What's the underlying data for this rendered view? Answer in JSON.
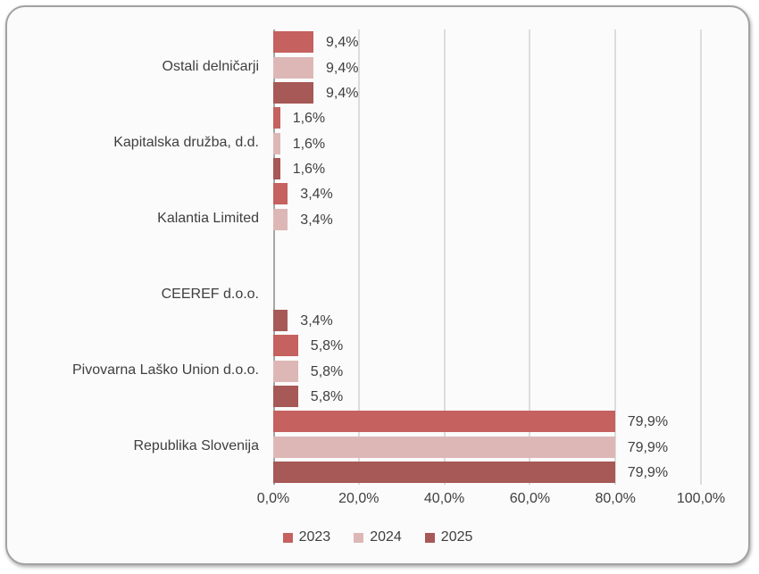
{
  "chart_data": {
    "type": "bar",
    "orientation": "horizontal",
    "title": "",
    "categories": [
      "Ostali delničarji",
      "Kapitalska družba, d.d.",
      "Kalantia Limited",
      "CEEREF d.o.o.",
      "Pivovarna Laško Union d.o.o.",
      "Republika Slovenija"
    ],
    "series": [
      {
        "name": "2023",
        "color": "#C5615E",
        "values": [
          9.4,
          1.6,
          3.4,
          null,
          5.8,
          79.9
        ]
      },
      {
        "name": "2024",
        "color": "#DDB7B6",
        "values": [
          9.4,
          1.6,
          3.4,
          null,
          5.8,
          79.9
        ]
      },
      {
        "name": "2025",
        "color": "#A65957",
        "values": [
          9.4,
          1.6,
          null,
          3.4,
          5.8,
          79.9
        ]
      }
    ],
    "xlim": [
      0,
      100
    ],
    "x_tick_labels": [
      "0,0%",
      "20,0%",
      "40,0%",
      "60,0%",
      "80,0%",
      "100,0%"
    ],
    "value_label_format": "comma-decimal-percent",
    "data_labels_shown": true,
    "grid": true,
    "legend_position": "bottom",
    "colors": {
      "text": "#3F3F3F",
      "gridline": "#DCDCDC",
      "axis_line": "#A6A6A6",
      "plot_background": "#FBFBFB",
      "frame_border": "#A2A2A4"
    }
  }
}
